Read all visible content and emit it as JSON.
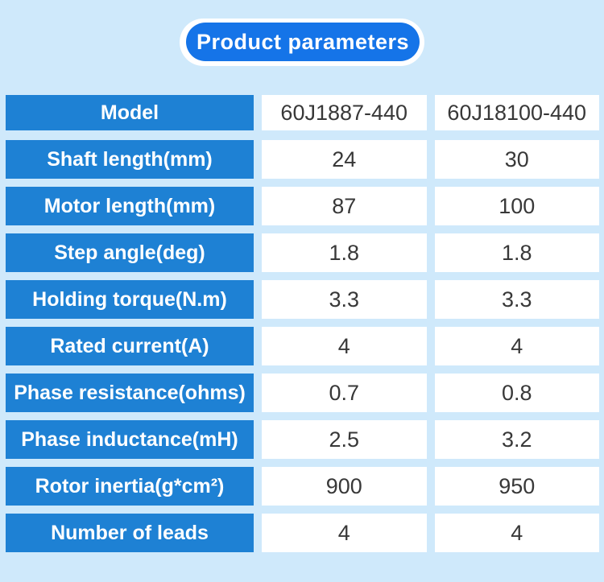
{
  "colors": {
    "background": "#cfe9fb",
    "pill_blue": "#1574e8",
    "pill_halo": "#ffffff",
    "table_header_blue": "#1e81d4",
    "value_text": "#383838"
  },
  "title": {
    "label": "Product parameters"
  },
  "table": {
    "rows": [
      {
        "label": "Model",
        "values": [
          "60J1887-440",
          "60J18100-440"
        ]
      },
      {
        "label": "Shaft length(mm)",
        "values": [
          "24",
          "30"
        ]
      },
      {
        "label": "Motor length(mm)",
        "values": [
          "87",
          "100"
        ]
      },
      {
        "label": "Step angle(deg)",
        "values": [
          "1.8",
          "1.8"
        ]
      },
      {
        "label": "Holding torque(N.m)",
        "values": [
          "3.3",
          "3.3"
        ]
      },
      {
        "label": "Rated current(A)",
        "values": [
          "4",
          "4"
        ]
      },
      {
        "label": "Phase resistance(ohms)",
        "values": [
          "0.7",
          "0.8"
        ]
      },
      {
        "label": "Phase inductance(mH)",
        "values": [
          "2.5",
          "3.2"
        ]
      },
      {
        "label": "Rotor inertia(g*cm²)",
        "values": [
          "900",
          "950"
        ]
      },
      {
        "label": "Number of leads",
        "values": [
          "4",
          "4"
        ]
      }
    ]
  }
}
